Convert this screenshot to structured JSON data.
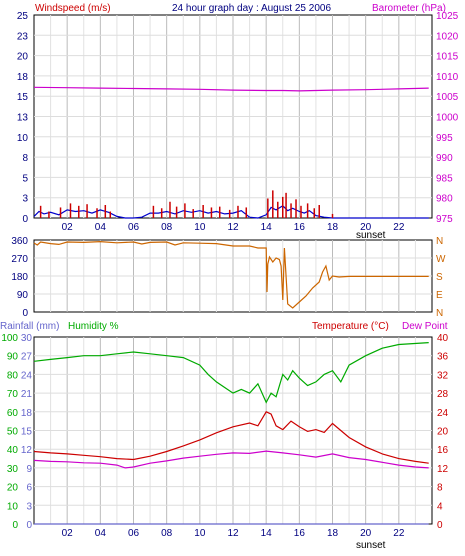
{
  "header": {
    "left_title": "Windspeed (m/s)",
    "center_title": "24 hour graph day : August 25 2006",
    "right_title": "Barometer (hPa)"
  },
  "bottom_header": {
    "rainfall_label": "Rainfall (mm)",
    "humidity_label": "Humidity %",
    "temperature_label": "Temperature (°C)",
    "dewpoint_label": "Dew Point"
  },
  "sunset_label": "sunset",
  "colors": {
    "wind_axis": "#cc0000",
    "baro_axis": "#cc00cc",
    "wind_avg": "#0000cc",
    "wind_gust": "#cc0000",
    "barometer": "#cc00cc",
    "direction": "#cc6600",
    "humidity": "#00aa00",
    "temperature": "#cc0000",
    "dewpoint": "#cc00cc",
    "rain_axis": "#6666cc",
    "grid": "#cccccc"
  },
  "chart_data": [
    {
      "type": "line",
      "title": "24 hour graph day : August 25 2006",
      "x_ticks": [
        "02",
        "04",
        "06",
        "08",
        "10",
        "12",
        "14",
        "16",
        "18",
        "20",
        "22"
      ],
      "xlim": [
        0,
        24
      ],
      "left_axis": {
        "label": "Windspeed (m/s)",
        "ticks": [
          "0",
          "3",
          "5",
          "8",
          "10",
          "13",
          "15",
          "18",
          "20",
          "23",
          "25"
        ],
        "ylim": [
          0,
          25
        ]
      },
      "right_axis": {
        "label": "Barometer (hPa)",
        "ticks": [
          "975",
          "980",
          "985",
          "990",
          "995",
          "1000",
          "1005",
          "1010",
          "1015",
          "1020",
          "1025"
        ],
        "ylim": [
          975,
          1025
        ]
      },
      "series": [
        {
          "name": "Barometer",
          "axis": "right",
          "x": [
            0,
            2,
            4,
            6,
            8,
            10,
            12,
            14,
            15,
            16,
            18,
            20,
            22,
            23.8
          ],
          "y": [
            1007.2,
            1007.1,
            1007.0,
            1006.9,
            1006.8,
            1006.7,
            1006.5,
            1006.4,
            1006.4,
            1006.3,
            1006.5,
            1006.6,
            1006.8,
            1007.0
          ]
        },
        {
          "name": "Wind average",
          "axis": "left",
          "x": [
            0,
            0.3,
            0.6,
            1,
            1.5,
            2,
            2.5,
            3,
            3.5,
            4,
            4.5,
            5,
            5.5,
            6,
            6.5,
            7,
            7.5,
            8,
            8.5,
            9,
            9.5,
            10,
            10.5,
            11,
            11.5,
            12,
            12.5,
            13,
            13.5,
            14,
            14.3,
            14.6,
            15,
            15.3,
            15.6,
            16,
            16.3,
            16.6,
            17,
            17.5,
            18,
            18.5,
            19,
            20,
            21,
            22,
            23.8
          ],
          "y": [
            0.2,
            0.8,
            0.5,
            0.7,
            0.4,
            1.0,
            0.8,
            0.9,
            0.6,
            1.0,
            0.7,
            0.2,
            0,
            0,
            0.1,
            0.6,
            0.6,
            0.8,
            0.5,
            0.9,
            0.7,
            0.9,
            0.6,
            0.8,
            0.5,
            0.6,
            0.9,
            0.1,
            0,
            0.4,
            1.3,
            1.0,
            1.5,
            0.9,
            1.2,
            0.8,
            0.6,
            0.9,
            0.3,
            0.1,
            0,
            0,
            0,
            0,
            0,
            0,
            0
          ]
        },
        {
          "name": "Wind gust",
          "axis": "left",
          "style": "bars",
          "x": [
            0.4,
            0.9,
            1.6,
            2.2,
            2.7,
            3.2,
            3.8,
            4.3,
            4.6,
            7.2,
            7.7,
            8.2,
            8.6,
            9.1,
            9.6,
            10.2,
            10.7,
            11.2,
            11.8,
            12.3,
            12.8,
            14.1,
            14.4,
            14.7,
            15.0,
            15.2,
            15.5,
            15.8,
            16.1,
            16.5,
            16.9,
            17.2,
            18.0
          ],
          "y": [
            1.5,
            0.8,
            1.3,
            1.8,
            1.5,
            1.7,
            1.2,
            1.6,
            0.8,
            1.5,
            1.2,
            2.0,
            1.4,
            1.8,
            1.1,
            1.6,
            1.3,
            1.4,
            1.0,
            1.5,
            1.3,
            2.4,
            3.4,
            2.0,
            2.6,
            3.1,
            1.8,
            2.3,
            1.5,
            1.8,
            1.2,
            1.6,
            0.5
          ]
        }
      ]
    },
    {
      "type": "line",
      "x_ticks": [
        "02",
        "04",
        "06",
        "08",
        "10",
        "12",
        "14",
        "16",
        "18",
        "20",
        "22"
      ],
      "xlim": [
        0,
        24
      ],
      "left_axis": {
        "ticks": [
          "0",
          "90",
          "180",
          "270",
          "360"
        ],
        "ylim": [
          0,
          360
        ]
      },
      "right_axis": {
        "ticks": [
          "N",
          "E",
          "S",
          "W",
          "N"
        ]
      },
      "series": [
        {
          "name": "Wind direction",
          "x": [
            0,
            0.2,
            0.4,
            1,
            1.5,
            2,
            3,
            4,
            5,
            6,
            6.5,
            7,
            8,
            8.5,
            9,
            10,
            11,
            12,
            13,
            13.5,
            14,
            14.05,
            14.1,
            14.2,
            14.4,
            14.6,
            14.8,
            14.9,
            15.0,
            15.1,
            15.3,
            15.6,
            16,
            16.4,
            16.8,
            17.2,
            17.4,
            17.6,
            17.8,
            18,
            18.4,
            19,
            20,
            22,
            23.8
          ],
          "y": [
            345,
            335,
            350,
            342,
            338,
            350,
            348,
            352,
            346,
            350,
            340,
            348,
            350,
            335,
            346,
            344,
            342,
            330,
            330,
            320,
            320,
            100,
            240,
            275,
            250,
            270,
            262,
            230,
            60,
            320,
            40,
            20,
            50,
            80,
            120,
            150,
            200,
            230,
            160,
            180,
            175,
            178,
            178,
            178,
            178
          ]
        }
      ]
    },
    {
      "type": "line",
      "x_ticks": [
        "02",
        "04",
        "06",
        "08",
        "10",
        "12",
        "14",
        "16",
        "18",
        "20",
        "22"
      ],
      "xlim": [
        0,
        24
      ],
      "left_axis_rain": {
        "label": "Rainfall (mm)",
        "ticks": [
          "0",
          "3",
          "6",
          "9",
          "12",
          "15",
          "18",
          "21",
          "24",
          "27",
          "30"
        ],
        "ylim": [
          0,
          30
        ]
      },
      "left_axis_humidity": {
        "label": "Humidity %",
        "ticks": [
          "0",
          "10",
          "20",
          "30",
          "40",
          "50",
          "60",
          "70",
          "80",
          "90",
          "100"
        ],
        "ylim": [
          0,
          100
        ]
      },
      "right_axis": {
        "label": "Temperature (°C)",
        "ticks": [
          "0",
          "4",
          "8",
          "12",
          "16",
          "20",
          "24",
          "28",
          "32",
          "36",
          "40"
        ],
        "ylim": [
          0,
          40
        ]
      },
      "series": [
        {
          "name": "Humidity",
          "axis": "humidity",
          "x": [
            0,
            1,
            2,
            3,
            4,
            5,
            6,
            7,
            8,
            9,
            10,
            10.5,
            11,
            11.5,
            12,
            12.5,
            13,
            13.5,
            14,
            14.3,
            14.6,
            15,
            15.3,
            15.6,
            16,
            16.5,
            17,
            17.5,
            18,
            18.5,
            19,
            20,
            21,
            22,
            23.8
          ],
          "y": [
            87,
            88,
            89,
            90,
            90,
            91,
            92,
            91,
            90,
            89,
            85,
            80,
            76,
            73,
            70,
            72,
            70,
            75,
            65,
            70,
            68,
            80,
            77,
            82,
            78,
            74,
            76,
            80,
            82,
            76,
            85,
            90,
            94,
            96,
            97
          ]
        },
        {
          "name": "Temperature",
          "axis": "temperature",
          "x": [
            0,
            1,
            2,
            3,
            4,
            5,
            6,
            7,
            8,
            9,
            10,
            11,
            12,
            13,
            13.5,
            14,
            14.3,
            14.6,
            15,
            15.5,
            16,
            16.5,
            17,
            17.5,
            18,
            19,
            20,
            21,
            22,
            23,
            23.8
          ],
          "y": [
            15.5,
            15.2,
            15.0,
            14.7,
            14.4,
            14.0,
            13.8,
            14.5,
            15.5,
            16.7,
            18.0,
            19.5,
            20.8,
            21.6,
            21.0,
            24.0,
            23.5,
            21.0,
            20.2,
            22.0,
            20.8,
            19.8,
            20.2,
            19.6,
            21.5,
            18.5,
            16.5,
            15.0,
            14.0,
            13.4,
            13.0
          ]
        },
        {
          "name": "Dew point",
          "axis": "temperature",
          "x": [
            0,
            1,
            2,
            3,
            4,
            5,
            5.5,
            6,
            7,
            8,
            9,
            10,
            11,
            12,
            13,
            14,
            15,
            16,
            17,
            18,
            19,
            20,
            21,
            22,
            23,
            23.8
          ],
          "y": [
            13.6,
            13.4,
            13.3,
            13.1,
            13.0,
            12.6,
            12.0,
            12.2,
            13.0,
            13.5,
            14.1,
            14.5,
            14.9,
            15.2,
            15.1,
            15.6,
            15.2,
            14.8,
            14.3,
            15.0,
            14.2,
            13.8,
            13.2,
            12.6,
            12.2,
            12.0
          ]
        },
        {
          "name": "Rainfall",
          "axis": "rain",
          "x": [
            0,
            23.8
          ],
          "y": [
            0,
            0
          ]
        }
      ]
    }
  ]
}
